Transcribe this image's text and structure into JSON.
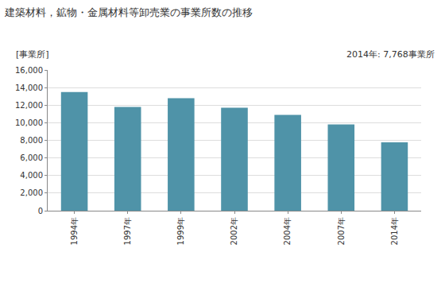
{
  "chart_data": {
    "type": "bar",
    "title": "建築材料，鉱物・金属材料等卸売業の事業所数の推移",
    "ylabel": "[事業所]",
    "annotations": [
      "2014年: 7,768事業所"
    ],
    "categories": [
      "1994年",
      "1997年",
      "1999年",
      "2002年",
      "2004年",
      "2007年",
      "2014年"
    ],
    "values": [
      13500,
      11800,
      12800,
      11700,
      10900,
      9800,
      7768
    ],
    "color": "#4f93a8",
    "ylim": [
      0,
      16000
    ],
    "yticks": [
      0,
      {
        "value": 2000,
        "label": "2,000"
      },
      {
        "value": 4000,
        "label": "4,000"
      },
      {
        "value": 6000,
        "label": "6,000"
      },
      {
        "value": 8000,
        "label": "8,000"
      },
      {
        "value": 10000,
        "label": "10,000"
      },
      {
        "value": 12000,
        "label": "12,000"
      },
      {
        "value": 14000,
        "label": "14,000"
      },
      {
        "value": 16000,
        "label": "16,000"
      }
    ],
    "grid": true
  }
}
